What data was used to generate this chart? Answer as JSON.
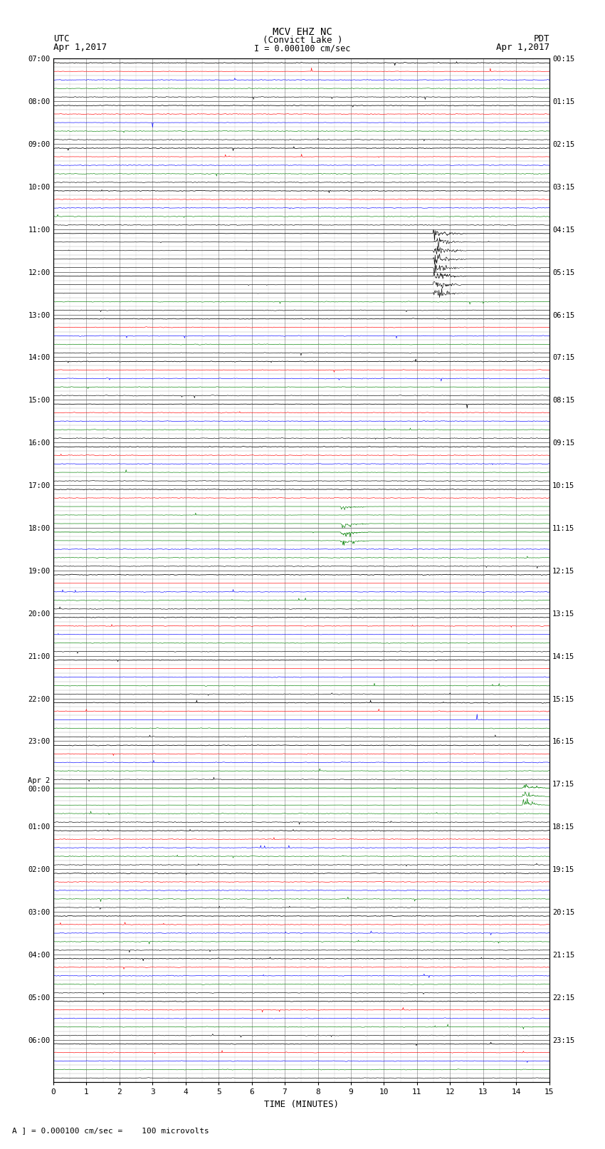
{
  "title_line1": "MCV EHZ NC",
  "title_line2": "(Convict Lake )",
  "title_line3": "I = 0.000100 cm/sec",
  "left_header1": "UTC",
  "left_header2": "Apr 1,2017",
  "right_header1": "PDT",
  "right_header2": "Apr 1,2017",
  "footer_note": "A ] = 0.000100 cm/sec =    100 microvolts",
  "xlabel": "TIME (MINUTES)",
  "utc_labels": [
    "07:00",
    "",
    "",
    "",
    "",
    "08:00",
    "",
    "",
    "",
    "",
    "09:00",
    "",
    "",
    "",
    "",
    "10:00",
    "",
    "",
    "",
    "",
    "11:00",
    "",
    "",
    "",
    "",
    "12:00",
    "",
    "",
    "",
    "",
    "13:00",
    "",
    "",
    "",
    "",
    "14:00",
    "",
    "",
    "",
    "",
    "15:00",
    "",
    "",
    "",
    "",
    "16:00",
    "",
    "",
    "",
    "",
    "17:00",
    "",
    "",
    "",
    "",
    "18:00",
    "",
    "",
    "",
    "",
    "19:00",
    "",
    "",
    "",
    "",
    "20:00",
    "",
    "",
    "",
    "",
    "21:00",
    "",
    "",
    "",
    "",
    "22:00",
    "",
    "",
    "",
    "",
    "23:00",
    "",
    "",
    "",
    "",
    "Apr 2\n00:00",
    "",
    "",
    "",
    "",
    "01:00",
    "",
    "",
    "",
    "",
    "02:00",
    "",
    "",
    "",
    "",
    "03:00",
    "",
    "",
    "",
    "",
    "04:00",
    "",
    "",
    "",
    "",
    "05:00",
    "",
    "",
    "",
    "",
    "06:00",
    "",
    "",
    "",
    ""
  ],
  "pdt_labels": [
    "00:15",
    "",
    "",
    "",
    "",
    "01:15",
    "",
    "",
    "",
    "",
    "02:15",
    "",
    "",
    "",
    "",
    "03:15",
    "",
    "",
    "",
    "",
    "04:15",
    "",
    "",
    "",
    "",
    "05:15",
    "",
    "",
    "",
    "",
    "06:15",
    "",
    "",
    "",
    "",
    "07:15",
    "",
    "",
    "",
    "",
    "08:15",
    "",
    "",
    "",
    "",
    "09:15",
    "",
    "",
    "",
    "",
    "10:15",
    "",
    "",
    "",
    "",
    "11:15",
    "",
    "",
    "",
    "",
    "12:15",
    "",
    "",
    "",
    "",
    "13:15",
    "",
    "",
    "",
    "",
    "14:15",
    "",
    "",
    "",
    "",
    "15:15",
    "",
    "",
    "",
    "",
    "16:15",
    "",
    "",
    "",
    "",
    "17:15",
    "",
    "",
    "",
    "",
    "18:15",
    "",
    "",
    "",
    "",
    "19:15",
    "",
    "",
    "",
    "",
    "20:15",
    "",
    "",
    "",
    "",
    "21:15",
    "",
    "",
    "",
    "",
    "22:15",
    "",
    "",
    "",
    "",
    "23:15",
    "",
    "",
    "",
    ""
  ],
  "n_hours": 24,
  "sub_rows": 5,
  "n_points": 900,
  "sub_colors": [
    "black",
    "red",
    "blue",
    "green",
    "black"
  ],
  "bg_color": "#ffffff",
  "grid_color_major": "#888888",
  "grid_color_minor": "#cccccc"
}
